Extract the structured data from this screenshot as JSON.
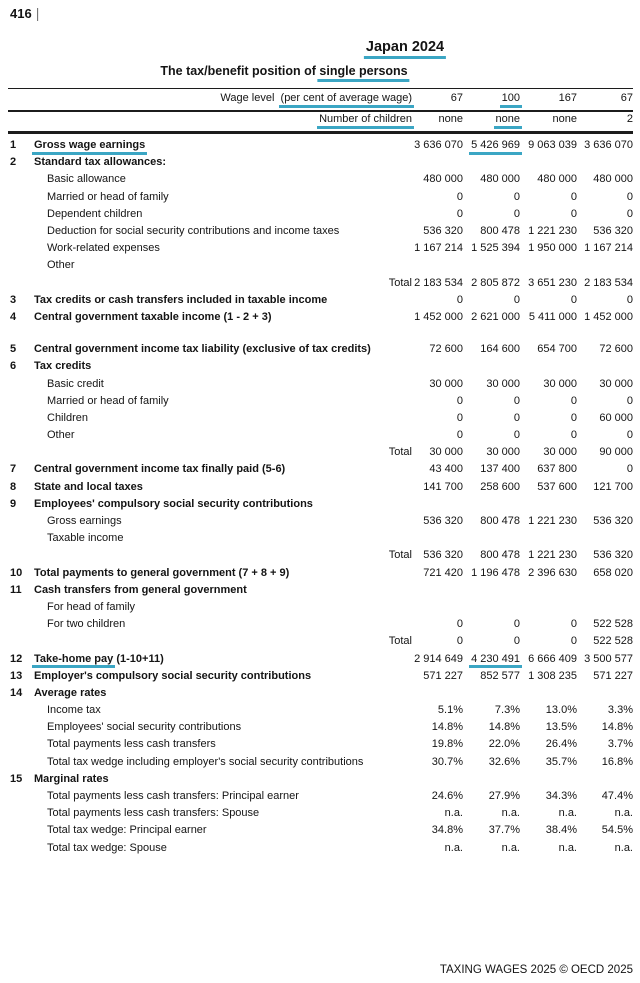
{
  "accent_color": "#3ba6c4",
  "page": {
    "number": "416",
    "separator": "|",
    "footer": "TAXING WAGES 2025 © OECD 2025"
  },
  "title": "Japan 2024",
  "subtitle_prefix": "The tax/benefit position of ",
  "subtitle_highlight": "single persons",
  "header": {
    "wage_level_label": "Wage level",
    "wage_level_sub": "(per cent of average wage)",
    "wage_levels": [
      "67",
      "100",
      "167",
      "67"
    ],
    "children_label": "Number of children",
    "children": [
      "none",
      "none",
      "none",
      "2"
    ],
    "highlighted_column_index": 1
  },
  "table": {
    "total_label": "Total",
    "rows": [
      {
        "num": "1",
        "label": "Gross wage earnings",
        "bold": true,
        "ul": true,
        "ul_value_col": 1,
        "values": [
          "3 636 070",
          "5 426 969",
          "9 063 039",
          "3 636 070"
        ]
      },
      {
        "num": "2",
        "label": "Standard tax allowances:",
        "bold": true,
        "values": [
          "",
          "",
          "",
          ""
        ]
      },
      {
        "label": "Basic allowance",
        "indent": true,
        "values": [
          "480 000",
          "480 000",
          "480 000",
          "480 000"
        ]
      },
      {
        "label": "Married or head of family",
        "indent": true,
        "values": [
          "0",
          "0",
          "0",
          "0"
        ]
      },
      {
        "label": "Dependent children",
        "indent": true,
        "values": [
          "0",
          "0",
          "0",
          "0"
        ]
      },
      {
        "label": "Deduction for social security contributions and income taxes",
        "indent": true,
        "values": [
          "536 320",
          "800 478",
          "1 221 230",
          "536 320"
        ]
      },
      {
        "label": "Work-related expenses",
        "indent": true,
        "values": [
          "1 167 214",
          "1 525 394",
          "1 950 000",
          "1 167 214"
        ]
      },
      {
        "label": "Other",
        "indent": true,
        "values": [
          "",
          "",
          "",
          ""
        ]
      },
      {
        "total": true,
        "values": [
          "2 183 534",
          "2 805 872",
          "3 651 230",
          "2 183 534"
        ]
      },
      {
        "num": "3",
        "label": "Tax credits or cash transfers included in taxable income",
        "bold": true,
        "values": [
          "0",
          "0",
          "0",
          "0"
        ]
      },
      {
        "num": "4",
        "label": "Central government taxable income (1 - 2 + 3)",
        "bold": true,
        "values": [
          "1 452 000",
          "2 621 000",
          "5 411 000",
          "1 452 000"
        ]
      },
      {
        "spacer": true
      },
      {
        "num": "5",
        "label": "Central government  income tax liability (exclusive of tax credits)",
        "bold": true,
        "values": [
          "72 600",
          "164 600",
          "654 700",
          "72 600"
        ]
      },
      {
        "num": "6",
        "label": "Tax credits",
        "bold": true,
        "values": [
          "",
          "",
          "",
          ""
        ]
      },
      {
        "label": "Basic credit",
        "indent": true,
        "values": [
          "30 000",
          "30 000",
          "30 000",
          "30 000"
        ]
      },
      {
        "label": "Married or head of family",
        "indent": true,
        "values": [
          "0",
          "0",
          "0",
          "0"
        ]
      },
      {
        "label": "Children",
        "indent": true,
        "values": [
          "0",
          "0",
          "0",
          "60 000"
        ]
      },
      {
        "label": "Other",
        "indent": true,
        "values": [
          "0",
          "0",
          "0",
          "0"
        ]
      },
      {
        "total": true,
        "values": [
          "30 000",
          "30 000",
          "30 000",
          "90 000"
        ]
      },
      {
        "num": "7",
        "label": "Central government income tax finally paid (5-6)",
        "bold": true,
        "values": [
          "43 400",
          "137 400",
          "637 800",
          "0"
        ]
      },
      {
        "num": "8",
        "label": "State and local taxes",
        "bold": true,
        "values": [
          "141 700",
          "258 600",
          "537 600",
          "121 700"
        ]
      },
      {
        "num": "9",
        "label": "Employees' compulsory social security contributions",
        "bold": true,
        "values": [
          "",
          "",
          "",
          ""
        ]
      },
      {
        "label": "Gross earnings",
        "indent": true,
        "values": [
          "536 320",
          "800 478",
          "1 221 230",
          "536 320"
        ]
      },
      {
        "label": "Taxable income",
        "indent": true,
        "values": [
          "",
          "",
          "",
          ""
        ]
      },
      {
        "total": true,
        "values": [
          "536 320",
          "800 478",
          "1 221 230",
          "536 320"
        ]
      },
      {
        "num": "10",
        "label": "Total payments to general government (7 + 8 + 9)",
        "bold": true,
        "values": [
          "721 420",
          "1 196 478",
          "2 396 630",
          "658 020"
        ]
      },
      {
        "num": "11",
        "label": "Cash transfers from general government",
        "bold": true,
        "values": [
          "",
          "",
          "",
          ""
        ]
      },
      {
        "label": "For head of family",
        "indent": true,
        "values": [
          "",
          "",
          "",
          ""
        ]
      },
      {
        "label": "For two children",
        "indent": true,
        "values": [
          "0",
          "0",
          "0",
          "522 528"
        ]
      },
      {
        "total": true,
        "values": [
          "0",
          "0",
          "0",
          "522 528"
        ]
      },
      {
        "num": "12",
        "label": "Take-home pay (1-10+11)",
        "bold": true,
        "ul": true,
        "ul_text": "Take-home pay",
        "ul_value_col": 1,
        "values": [
          "2 914 649",
          "4 230 491",
          "6 666 409",
          "3 500 577"
        ]
      },
      {
        "num": "13",
        "label": "Employer's compulsory social security contributions",
        "bold": true,
        "values": [
          "571 227",
          "852 577",
          "1 308 235",
          "571 227"
        ]
      },
      {
        "num": "14",
        "label": "Average rates",
        "bold": true,
        "values": [
          "",
          "",
          "",
          ""
        ]
      },
      {
        "label": "Income tax",
        "indent": true,
        "values": [
          "5.1%",
          "7.3%",
          "13.0%",
          "3.3%"
        ]
      },
      {
        "label": "Employees' social security contributions",
        "indent": true,
        "values": [
          "14.8%",
          "14.8%",
          "13.5%",
          "14.8%"
        ]
      },
      {
        "label": "Total payments less cash transfers",
        "indent": true,
        "values": [
          "19.8%",
          "22.0%",
          "26.4%",
          "3.7%"
        ]
      },
      {
        "label": "Total tax wedge including employer's social security contributions",
        "indent": true,
        "values": [
          "30.7%",
          "32.6%",
          "35.7%",
          "16.8%"
        ]
      },
      {
        "num": "15",
        "label": "Marginal rates",
        "bold": true,
        "values": [
          "",
          "",
          "",
          ""
        ]
      },
      {
        "label": "Total payments less cash transfers: Principal earner",
        "indent": true,
        "values": [
          "24.6%",
          "27.9%",
          "34.3%",
          "47.4%"
        ]
      },
      {
        "label": "Total payments less cash transfers: Spouse",
        "indent": true,
        "values": [
          "n.a.",
          "n.a.",
          "n.a.",
          "n.a."
        ]
      },
      {
        "label": "Total tax wedge: Principal earner",
        "indent": true,
        "values": [
          "34.8%",
          "37.7%",
          "38.4%",
          "54.5%"
        ]
      },
      {
        "label": "Total tax wedge: Spouse",
        "indent": true,
        "values": [
          "n.a.",
          "n.a.",
          "n.a.",
          "n.a."
        ]
      }
    ]
  }
}
